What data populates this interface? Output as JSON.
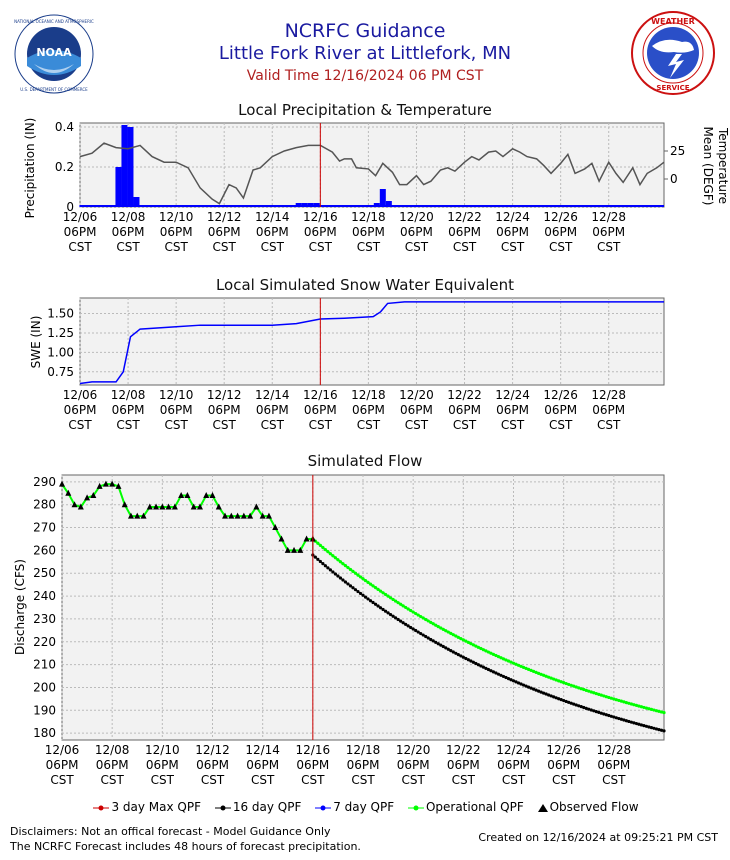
{
  "header": {
    "title": "NCRFC Guidance",
    "subtitle": "Little Fork River at Littlefork, MN",
    "valid_time": "Valid Time 12/16/2024 06 PM CST"
  },
  "logos": {
    "left": "noaa-logo",
    "right": "national-weather-service-logo"
  },
  "x_ticks": [
    [
      "12/06",
      "06PM",
      "CST"
    ],
    [
      "12/08",
      "06PM",
      "CST"
    ],
    [
      "12/10",
      "06PM",
      "CST"
    ],
    [
      "12/12",
      "06PM",
      "CST"
    ],
    [
      "12/14",
      "06PM",
      "CST"
    ],
    [
      "12/16",
      "06PM",
      "CST"
    ],
    [
      "12/18",
      "06PM",
      "CST"
    ],
    [
      "12/20",
      "06PM",
      "CST"
    ],
    [
      "12/22",
      "06PM",
      "CST"
    ],
    [
      "12/24",
      "06PM",
      "CST"
    ],
    [
      "12/26",
      "06PM",
      "CST"
    ],
    [
      "12/28",
      "06PM",
      "CST"
    ]
  ],
  "colors": {
    "precip": "#0000ff",
    "temp": "#555555",
    "swe": "#0000ff",
    "operational": "#00ff00",
    "sixteen_day": "#000000",
    "now_line": "#cc0000",
    "plot_bg": "#f2f2f2"
  },
  "chart_data": [
    {
      "type": "bar",
      "title": "Local Precipitation & Temperature",
      "ylabel": "Precipitation (IN)",
      "y2label_line1": "Temperature",
      "y2label_line2": "Mean (DEGF)",
      "ylim": [
        0,
        0.42
      ],
      "y2lim": [
        -25,
        50
      ],
      "yticks": [
        "0",
        "0.2",
        "0.4"
      ],
      "y2ticks": [
        "0",
        "25"
      ],
      "xlim_days": [
        0,
        24.3
      ],
      "now_day": 10,
      "precip": [
        [
          0.1,
          0.01
        ],
        [
          0.35,
          0.01
        ],
        [
          0.6,
          0.01
        ],
        [
          0.85,
          0.01
        ],
        [
          1.1,
          0.01
        ],
        [
          1.35,
          0.01
        ],
        [
          1.6,
          0.2
        ],
        [
          1.85,
          0.41
        ],
        [
          2.1,
          0.4
        ],
        [
          2.35,
          0.05
        ],
        [
          2.6,
          0.01
        ],
        [
          2.85,
          0.01
        ],
        [
          3.1,
          0.01
        ],
        [
          3.35,
          0.01
        ],
        [
          3.6,
          0.01
        ],
        [
          3.85,
          0.01
        ],
        [
          4.1,
          0.01
        ],
        [
          4.35,
          0.01
        ],
        [
          9.1,
          0.02
        ],
        [
          9.35,
          0.02
        ],
        [
          9.6,
          0.02
        ],
        [
          9.85,
          0.02
        ],
        [
          10.1,
          0.01
        ],
        [
          12.35,
          0.02
        ],
        [
          12.6,
          0.09
        ],
        [
          12.85,
          0.03
        ],
        [
          13.1,
          0.01
        ]
      ],
      "temp": [
        [
          0,
          20
        ],
        [
          0.5,
          23
        ],
        [
          1,
          32
        ],
        [
          1.5,
          28
        ],
        [
          2,
          27
        ],
        [
          2.5,
          30
        ],
        [
          3,
          20
        ],
        [
          3.5,
          15
        ],
        [
          4,
          15
        ],
        [
          4.5,
          10
        ],
        [
          5,
          -8
        ],
        [
          5.5,
          -18
        ],
        [
          5.8,
          -22
        ],
        [
          6.2,
          -5
        ],
        [
          6.5,
          -8
        ],
        [
          6.8,
          -17
        ],
        [
          7.2,
          8
        ],
        [
          7.5,
          10
        ],
        [
          8,
          20
        ],
        [
          8.5,
          25
        ],
        [
          9,
          28
        ],
        [
          9.5,
          30
        ],
        [
          10,
          30
        ],
        [
          10.5,
          24
        ],
        [
          10.8,
          16
        ],
        [
          11,
          18
        ],
        [
          11.3,
          18
        ],
        [
          11.5,
          10
        ],
        [
          12,
          9
        ],
        [
          12.3,
          3
        ],
        [
          12.6,
          14
        ],
        [
          13,
          6
        ],
        [
          13.3,
          -5
        ],
        [
          13.6,
          -5
        ],
        [
          14,
          3
        ],
        [
          14.3,
          -5
        ],
        [
          14.6,
          -2
        ],
        [
          15,
          8
        ],
        [
          15.3,
          10
        ],
        [
          15.6,
          7
        ],
        [
          16,
          15
        ],
        [
          16.3,
          20
        ],
        [
          16.6,
          17
        ],
        [
          17,
          24
        ],
        [
          17.3,
          25
        ],
        [
          17.6,
          20
        ],
        [
          18,
          27
        ],
        [
          18.3,
          24
        ],
        [
          18.6,
          20
        ],
        [
          19,
          18
        ],
        [
          19.3,
          12
        ],
        [
          19.6,
          5
        ],
        [
          20,
          14
        ],
        [
          20.3,
          22
        ],
        [
          20.6,
          5
        ],
        [
          21,
          9
        ],
        [
          21.3,
          14
        ],
        [
          21.6,
          -2
        ],
        [
          22,
          15
        ],
        [
          22.3,
          5
        ],
        [
          22.6,
          -3
        ],
        [
          23,
          10
        ],
        [
          23.3,
          -5
        ],
        [
          23.6,
          5
        ],
        [
          24,
          10
        ],
        [
          24.3,
          15
        ]
      ]
    },
    {
      "type": "line",
      "title": "Local Simulated Snow Water Equivalent",
      "ylabel": "SWE (IN)",
      "ylim": [
        0.58,
        1.7
      ],
      "yticks": [
        "0.75",
        "1.00",
        "1.25",
        "1.50"
      ],
      "xlim_days": [
        0,
        24.3
      ],
      "now_day": 10,
      "swe": [
        [
          0,
          0.6
        ],
        [
          0.5,
          0.62
        ],
        [
          1.5,
          0.62
        ],
        [
          1.8,
          0.75
        ],
        [
          2.1,
          1.2
        ],
        [
          2.5,
          1.3
        ],
        [
          4,
          1.33
        ],
        [
          5,
          1.35
        ],
        [
          8,
          1.35
        ],
        [
          9,
          1.37
        ],
        [
          10,
          1.43
        ],
        [
          11,
          1.44
        ],
        [
          12.2,
          1.46
        ],
        [
          12.5,
          1.52
        ],
        [
          12.8,
          1.63
        ],
        [
          13.5,
          1.65
        ],
        [
          24.3,
          1.65
        ]
      ]
    },
    {
      "type": "line",
      "title": "Simulated Flow",
      "ylabel": "Discharge (CFS)",
      "ylim": [
        177,
        293
      ],
      "yticks": [
        180,
        190,
        200,
        210,
        220,
        230,
        240,
        250,
        260,
        270,
        280,
        290
      ],
      "xlim_days": [
        0,
        24
      ],
      "now_day": 10,
      "legend": [
        "3 day Max QPF",
        "16 day QPF",
        "7 day QPF",
        "Operational QPF",
        "Observed Flow"
      ],
      "legend_colors": [
        "#cc0000",
        "#000000",
        "#0000ff",
        "#00ff00",
        "#000000"
      ],
      "observed": [
        [
          0,
          289
        ],
        [
          0.25,
          285
        ],
        [
          0.5,
          280
        ],
        [
          0.75,
          279
        ],
        [
          1,
          283
        ],
        [
          1.25,
          284
        ],
        [
          1.5,
          288
        ],
        [
          1.75,
          289
        ],
        [
          2,
          289
        ],
        [
          2.25,
          288
        ],
        [
          2.5,
          280
        ],
        [
          2.75,
          275
        ],
        [
          3,
          275
        ],
        [
          3.25,
          275
        ],
        [
          3.5,
          279
        ],
        [
          3.75,
          279
        ],
        [
          4,
          279
        ],
        [
          4.25,
          279
        ],
        [
          4.5,
          279
        ],
        [
          4.75,
          284
        ],
        [
          5,
          284
        ],
        [
          5.25,
          279
        ],
        [
          5.5,
          279
        ],
        [
          5.75,
          284
        ],
        [
          6,
          284
        ],
        [
          6.25,
          279
        ],
        [
          6.5,
          275
        ],
        [
          6.75,
          275
        ],
        [
          7,
          275
        ],
        [
          7.25,
          275
        ],
        [
          7.5,
          275
        ],
        [
          7.75,
          279
        ],
        [
          8,
          275
        ],
        [
          8.25,
          275
        ],
        [
          8.5,
          270
        ],
        [
          8.75,
          265
        ],
        [
          9,
          260
        ],
        [
          9.25,
          260
        ],
        [
          9.5,
          260
        ],
        [
          9.75,
          265
        ],
        [
          10,
          265
        ]
      ],
      "operational_end": 189,
      "sixteen_end": 181,
      "now_value": 258
    }
  ],
  "legend_labels": {
    "max3": "3 day Max QPF",
    "d16": "16 day QPF",
    "d7": "7 day QPF",
    "oper": "Operational QPF",
    "obs": "Observed Flow"
  },
  "footer": {
    "line1": "Disclaimers: Not an offical forecast - Model Guidance Only",
    "line2": "The NCRFC Forecast includes 48 hours of forecast precipitation.",
    "created": "Created on 12/16/2024 at 09:25:21 PM CST"
  }
}
